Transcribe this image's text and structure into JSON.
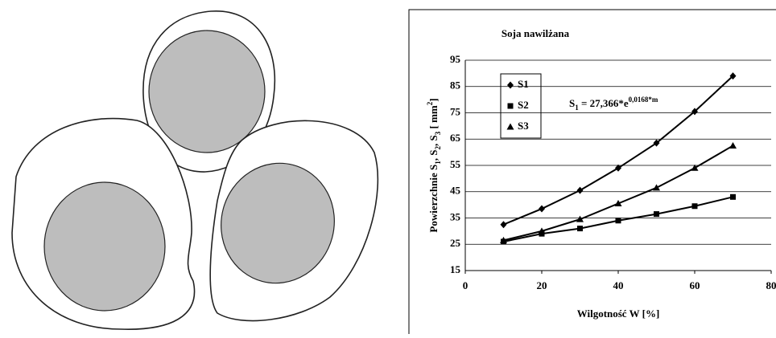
{
  "chart_data": {
    "type": "line",
    "title": "Soja nawilżana",
    "x_label": "Wilgotność W [%]",
    "y_label": [
      {
        "text": "Powierzchnie S"
      },
      {
        "text": "1",
        "baseline": "sub"
      },
      {
        "text": ", S"
      },
      {
        "text": "2",
        "baseline": "sub"
      },
      {
        "text": ", S"
      },
      {
        "text": "3",
        "baseline": "sub"
      },
      {
        "text": " [ mm"
      },
      {
        "text": "2",
        "baseline": "super"
      },
      {
        "text": "]"
      }
    ],
    "annotation": [
      {
        "text": "S"
      },
      {
        "text": "1",
        "baseline": "sub"
      },
      {
        "text": " = 27,366*e"
      },
      {
        "text": "0,0168*m",
        "baseline": "super"
      }
    ],
    "x": [
      10,
      20,
      30,
      40,
      50,
      60,
      70
    ],
    "series": [
      {
        "name": "S1",
        "color": "#000000",
        "marker": "diamond",
        "values": [
          32.5,
          38.5,
          45.5,
          54,
          63.5,
          75.5,
          89
        ]
      },
      {
        "name": "S2",
        "color": "#000000",
        "marker": "square",
        "values": [
          26,
          29,
          31,
          34,
          36.5,
          39.5,
          43
        ]
      },
      {
        "name": "S3",
        "color": "#000000",
        "marker": "triangle",
        "values": [
          26.5,
          30,
          34.5,
          40.5,
          46.5,
          54,
          62.5
        ]
      }
    ],
    "xlim": [
      0,
      80
    ],
    "xticks": [
      0,
      20,
      40,
      60,
      80
    ],
    "ylim": [
      15,
      95
    ],
    "yticks": [
      15,
      25,
      35,
      45,
      55,
      65,
      75,
      85,
      95
    ],
    "grid": true,
    "legend": "upper-left"
  }
}
